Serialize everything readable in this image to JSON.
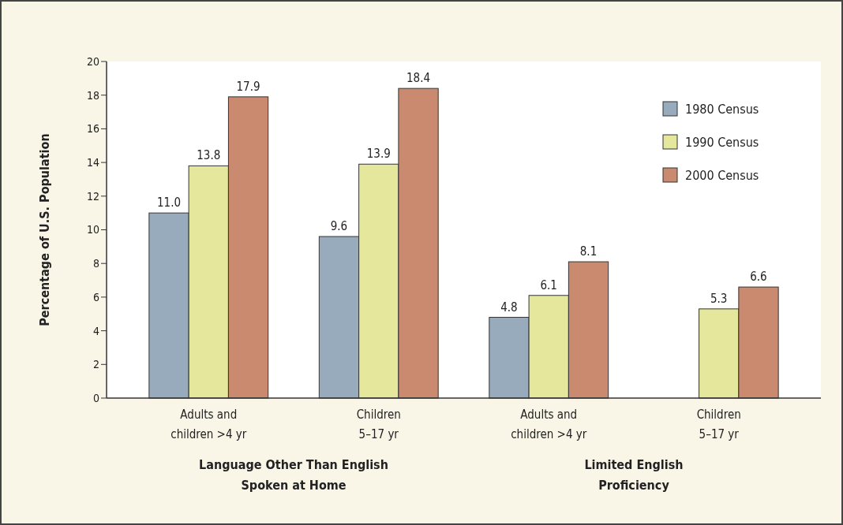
{
  "chart_data": {
    "type": "bar",
    "ylabel": "Percentage of U.S. Population",
    "categories": [
      "Adults and\nchildren >4 yr",
      "Children\n5–17 yr",
      "Adults and\nchildren >4 yr",
      "Children\n5–17 yr"
    ],
    "series": [
      {
        "name": "1980 Census",
        "color": "#98abbd",
        "values": [
          11.0,
          9.6,
          4.8,
          null
        ],
        "value_labels": [
          "11.0",
          "9.6",
          "4.8",
          null
        ]
      },
      {
        "name": "1990 Census",
        "color": "#e5e79c",
        "values": [
          13.8,
          13.9,
          6.1,
          5.3
        ],
        "value_labels": [
          "13.8",
          "13.9",
          "6.1",
          "5.3"
        ]
      },
      {
        "name": "2000 Census",
        "color": "#c98a70",
        "values": [
          17.9,
          18.4,
          8.1,
          6.6
        ],
        "value_labels": [
          "17.9",
          "18.4",
          "8.1",
          "6.6"
        ]
      }
    ],
    "ylim": [
      0,
      20
    ],
    "yticks": [
      0,
      2,
      4,
      6,
      8,
      10,
      12,
      14,
      16,
      18,
      20
    ],
    "legend": "top right",
    "grid": false,
    "annotations": [
      "Language Other Than English\nSpoken at Home",
      "Limited English\nProficiency"
    ]
  }
}
